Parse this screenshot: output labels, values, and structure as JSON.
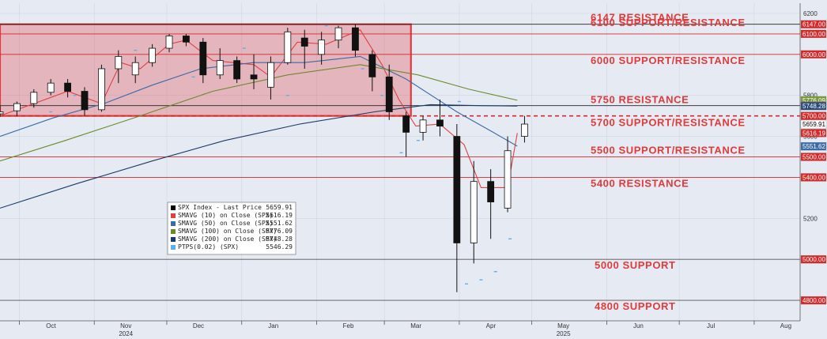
{
  "chart_data": {
    "type": "candlestick",
    "title": "",
    "xlabel": "",
    "ylabel": "",
    "ylim": [
      4700,
      6250
    ],
    "xlim": [
      "2024-09-23",
      "2025-08-20"
    ],
    "y_ticks": [
      4800,
      5000,
      5200,
      5400,
      5600,
      5800,
      6000,
      6200
    ],
    "y_tick_labels": [
      "4800",
      "5000",
      "5200",
      "5400",
      "5600",
      "5800",
      "6000",
      "6200"
    ],
    "month_ticks": [
      {
        "label": "Oct",
        "date": "2024-10-01",
        "year": ""
      },
      {
        "label": "Nov",
        "date": "2024-11-01",
        "year": "2024"
      },
      {
        "label": "Dec",
        "date": "2024-12-01",
        "year": ""
      },
      {
        "label": "Jan",
        "date": "2025-01-01",
        "year": ""
      },
      {
        "label": "Feb",
        "date": "2025-02-01",
        "year": ""
      },
      {
        "label": "Mar",
        "date": "2025-03-01",
        "year": ""
      },
      {
        "label": "Apr",
        "date": "2025-04-01",
        "year": ""
      },
      {
        "label": "May",
        "date": "2025-05-01",
        "year": "2025"
      },
      {
        "label": "Jun",
        "date": "2025-06-01",
        "year": ""
      },
      {
        "label": "Jul",
        "date": "2025-07-01",
        "year": ""
      },
      {
        "label": "Aug",
        "date": "2025-08-01",
        "year": ""
      }
    ],
    "levels": [
      {
        "value": 6147,
        "label": "6147 RESISTANCE",
        "color": "#222222",
        "dashed": false
      },
      {
        "value": 6100,
        "label": "6100 SUPPORT/RESISTANCE",
        "color": "#d62828",
        "dashed": false
      },
      {
        "value": 6000,
        "label": "6000 SUPPORT/RESISTANCE",
        "color": "#d62828",
        "dashed": false
      },
      {
        "value": 5750,
        "label": "5750 RESISTANCE",
        "color": "#222222",
        "dashed": false
      },
      {
        "value": 5700,
        "label": "5700 SUPPORT/RESISTANCE",
        "color": "#d62828",
        "dashed": true
      },
      {
        "value": 5500,
        "label": "5500 SUPPORT/RESISTANCE",
        "color": "#d62828",
        "dashed": false
      },
      {
        "value": 5400,
        "label": "5400 RESISTANCE",
        "color": "#d62828",
        "dashed": false
      },
      {
        "value": 5000,
        "label": "5000 SUPPORT",
        "color": "#555555",
        "dashed": false
      },
      {
        "value": 4800,
        "label": "4800 SUPPORT",
        "color": "#555555",
        "dashed": false
      }
    ],
    "price_tags": [
      {
        "value": 6147,
        "text": "6147.00",
        "bg": "#d62828",
        "fg": "#ffffff"
      },
      {
        "value": 6100,
        "text": "6100.00",
        "bg": "#d62828",
        "fg": "#ffffff"
      },
      {
        "value": 6000,
        "text": "6000.00",
        "bg": "#d62828",
        "fg": "#ffffff"
      },
      {
        "value": 5776.09,
        "text": "5776.09",
        "bg": "#7a9a3a",
        "fg": "#ffffff"
      },
      {
        "value": 5750,
        "text": "5750.00",
        "bg": "#d62828",
        "fg": "#ffffff"
      },
      {
        "value": 5748.28,
        "text": "5748.28",
        "bg": "#2a4a7a",
        "fg": "#ffffff"
      },
      {
        "value": 5700,
        "text": "5700.00",
        "bg": "#d62828",
        "fg": "#ffffff"
      },
      {
        "value": 5659.91,
        "text": "5659.91",
        "bg": "#ffffff",
        "fg": "#000000"
      },
      {
        "value": 5616.19,
        "text": "5616.19",
        "bg": "#d62828",
        "fg": "#ffffff"
      },
      {
        "value": 5551.62,
        "text": "5551.62",
        "bg": "#3a6aa8",
        "fg": "#ffffff"
      },
      {
        "value": 5500,
        "text": "5500.00",
        "bg": "#d62828",
        "fg": "#ffffff"
      },
      {
        "value": 5400,
        "text": "5400.00",
        "bg": "#d62828",
        "fg": "#ffffff"
      },
      {
        "value": 5000,
        "text": "5000.00",
        "bg": "#d62828",
        "fg": "#ffffff"
      },
      {
        "value": 4800,
        "text": "4800.00",
        "bg": "#d62828",
        "fg": "#ffffff"
      }
    ],
    "zone": {
      "start": "2024-09-23",
      "end": "2025-03-12",
      "low": 5700,
      "high": 6147,
      "color": "#e0505a"
    },
    "legend": {
      "placement": "lower-left",
      "entries": [
        {
          "name": "SPX Index - Last Price",
          "value": "5659.91",
          "color": "#000000"
        },
        {
          "name": "SMAVG (10)  on Close (SPX)",
          "value": "5616.19",
          "color": "#e04040"
        },
        {
          "name": "SMAVG (50)  on Close (SPX)",
          "value": "5551.62",
          "color": "#3a6aa8"
        },
        {
          "name": "SMAVG (100)  on Close (SPX)",
          "value": "5776.09",
          "color": "#6a8a2a"
        },
        {
          "name": "SMAVG (200)  on Close (SPX)",
          "value": "5748.28",
          "color": "#1a3a6a"
        },
        {
          "name": "PTPS(0.02)  (SPX)",
          "value": "5546.29",
          "color": "#5ab0ee"
        }
      ]
    },
    "series": [
      {
        "name": "SMAVG (10)  on Close (SPX)",
        "color": "#e04040",
        "x": [
          "2024-09-23",
          "2024-10-07",
          "2024-10-21",
          "2024-11-04",
          "2024-11-12",
          "2024-11-20",
          "2024-12-02",
          "2024-12-09",
          "2024-12-20",
          "2025-01-06",
          "2025-01-13",
          "2025-01-24",
          "2025-02-05",
          "2025-02-19",
          "2025-02-28",
          "2025-03-07",
          "2025-03-14",
          "2025-03-24",
          "2025-04-03",
          "2025-04-10",
          "2025-04-21",
          "2025-04-25"
        ],
        "y": [
          5700,
          5760,
          5820,
          5760,
          5960,
          5930,
          6050,
          6070,
          5970,
          5950,
          5890,
          6060,
          6050,
          6120,
          5950,
          5780,
          5650,
          5660,
          5560,
          5350,
          5350,
          5616
        ]
      },
      {
        "name": "SMAVG (50)  on Close (SPX)",
        "color": "#3a6aa8",
        "x": [
          "2024-09-23",
          "2024-10-15",
          "2024-11-05",
          "2024-11-25",
          "2024-12-15",
          "2025-01-06",
          "2025-01-27",
          "2025-02-19",
          "2025-03-10",
          "2025-03-31",
          "2025-04-15",
          "2025-04-25"
        ],
        "y": [
          5600,
          5690,
          5760,
          5850,
          5930,
          5960,
          5960,
          5990,
          5880,
          5720,
          5620,
          5552
        ]
      },
      {
        "name": "SMAVG (100)  on Close (SPX)",
        "color": "#6a8a2a",
        "x": [
          "2024-09-23",
          "2024-10-20",
          "2024-11-20",
          "2024-12-20",
          "2025-01-20",
          "2025-02-19",
          "2025-03-15",
          "2025-04-05",
          "2025-04-25"
        ],
        "y": [
          5480,
          5580,
          5700,
          5820,
          5900,
          5950,
          5900,
          5830,
          5776
        ]
      },
      {
        "name": "SMAVG (200)  on Close (SPX)",
        "color": "#1a3a6a",
        "x": [
          "2024-09-23",
          "2024-10-25",
          "2024-11-25",
          "2024-12-25",
          "2025-01-25",
          "2025-02-25",
          "2025-03-20",
          "2025-04-10",
          "2025-04-25"
        ],
        "y": [
          5250,
          5370,
          5480,
          5580,
          5660,
          5720,
          5755,
          5750,
          5748
        ]
      }
    ],
    "candles": [
      {
        "d": "2024-09-23",
        "o": 5710,
        "h": 5750,
        "l": 5695,
        "c": 5720
      },
      {
        "d": "2024-09-30",
        "o": 5725,
        "h": 5770,
        "l": 5700,
        "c": 5760
      },
      {
        "d": "2024-10-07",
        "o": 5760,
        "h": 5830,
        "l": 5740,
        "c": 5815
      },
      {
        "d": "2024-10-14",
        "o": 5815,
        "h": 5880,
        "l": 5800,
        "c": 5860
      },
      {
        "d": "2024-10-21",
        "o": 5860,
        "h": 5880,
        "l": 5790,
        "c": 5820
      },
      {
        "d": "2024-10-28",
        "o": 5820,
        "h": 5840,
        "l": 5700,
        "c": 5730
      },
      {
        "d": "2024-11-04",
        "o": 5730,
        "h": 5950,
        "l": 5720,
        "c": 5930
      },
      {
        "d": "2024-11-11",
        "o": 5930,
        "h": 6020,
        "l": 5860,
        "c": 5990
      },
      {
        "d": "2024-11-18",
        "o": 5900,
        "h": 5990,
        "l": 5860,
        "c": 5960
      },
      {
        "d": "2024-11-25",
        "o": 5960,
        "h": 6050,
        "l": 5940,
        "c": 6030
      },
      {
        "d": "2024-12-02",
        "o": 6030,
        "h": 6100,
        "l": 6010,
        "c": 6090
      },
      {
        "d": "2024-12-09",
        "o": 6090,
        "h": 6100,
        "l": 6040,
        "c": 6060
      },
      {
        "d": "2024-12-16",
        "o": 6060,
        "h": 6080,
        "l": 5860,
        "c": 5900
      },
      {
        "d": "2024-12-23",
        "o": 5900,
        "h": 6030,
        "l": 5880,
        "c": 5970
      },
      {
        "d": "2024-12-30",
        "o": 5970,
        "h": 5990,
        "l": 5860,
        "c": 5880
      },
      {
        "d": "2025-01-06",
        "o": 5900,
        "h": 6000,
        "l": 5830,
        "c": 5880
      },
      {
        "d": "2025-01-13",
        "o": 5840,
        "h": 5990,
        "l": 5780,
        "c": 5960
      },
      {
        "d": "2025-01-20",
        "o": 5960,
        "h": 6130,
        "l": 5950,
        "c": 6110
      },
      {
        "d": "2025-01-27",
        "o": 6080,
        "h": 6120,
        "l": 5930,
        "c": 6040
      },
      {
        "d": "2025-02-03",
        "o": 6000,
        "h": 6110,
        "l": 5950,
        "c": 6070
      },
      {
        "d": "2025-02-10",
        "o": 6070,
        "h": 6140,
        "l": 6030,
        "c": 6130
      },
      {
        "d": "2025-02-17",
        "o": 6130,
        "h": 6147,
        "l": 5990,
        "c": 6020
      },
      {
        "d": "2025-02-24",
        "o": 6000,
        "h": 6020,
        "l": 5820,
        "c": 5890
      },
      {
        "d": "2025-03-03",
        "o": 5890,
        "h": 5950,
        "l": 5680,
        "c": 5720
      },
      {
        "d": "2025-03-10",
        "o": 5700,
        "h": 5720,
        "l": 5500,
        "c": 5620
      },
      {
        "d": "2025-03-17",
        "o": 5620,
        "h": 5700,
        "l": 5580,
        "c": 5680
      },
      {
        "d": "2025-03-24",
        "o": 5680,
        "h": 5780,
        "l": 5600,
        "c": 5650
      },
      {
        "d": "2025-03-31",
        "o": 5600,
        "h": 5660,
        "l": 4840,
        "c": 5080
      },
      {
        "d": "2025-04-07",
        "o": 5080,
        "h": 5480,
        "l": 4980,
        "c": 5380
      },
      {
        "d": "2025-04-14",
        "o": 5380,
        "h": 5440,
        "l": 5100,
        "c": 5280
      },
      {
        "d": "2025-04-21",
        "o": 5250,
        "h": 5600,
        "l": 5230,
        "c": 5530
      },
      {
        "d": "2025-04-28",
        "o": 5600,
        "h": 5700,
        "l": 5570,
        "c": 5660
      }
    ],
    "psar": [
      {
        "d": "2024-10-14",
        "v": 5720
      },
      {
        "d": "2024-10-24",
        "v": 5800
      },
      {
        "d": "2024-11-05",
        "v": 5930
      },
      {
        "d": "2024-11-18",
        "v": 6020
      },
      {
        "d": "2024-12-12",
        "v": 5890
      },
      {
        "d": "2025-01-02",
        "v": 6030
      },
      {
        "d": "2025-01-20",
        "v": 5800
      },
      {
        "d": "2025-02-05",
        "v": 6140
      },
      {
        "d": "2025-02-20",
        "v": 5930
      },
      {
        "d": "2025-02-28",
        "v": 5800
      },
      {
        "d": "2025-03-08",
        "v": 5520
      },
      {
        "d": "2025-03-15",
        "v": 5580
      },
      {
        "d": "2025-04-01",
        "v": 5770
      },
      {
        "d": "2025-04-04",
        "v": 4880
      },
      {
        "d": "2025-04-10",
        "v": 4900
      },
      {
        "d": "2025-04-16",
        "v": 4940
      },
      {
        "d": "2025-04-22",
        "v": 5100
      }
    ]
  }
}
